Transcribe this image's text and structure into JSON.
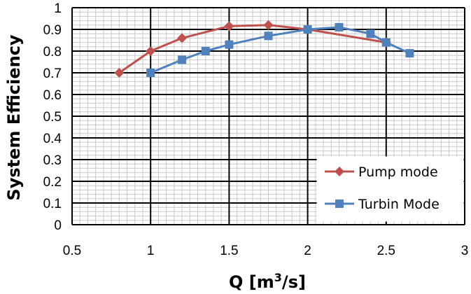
{
  "chart_data": {
    "type": "line",
    "title": "",
    "xlabel": "Q [m³/s]",
    "ylabel": "System Efficiency",
    "xlim": [
      0.5,
      3
    ],
    "ylim": [
      0,
      1
    ],
    "x_ticks": [
      "0.5",
      "1",
      "1.5",
      "2",
      "2.5",
      "3"
    ],
    "y_ticks": [
      "0",
      "0.1",
      "0.2",
      "0.3",
      "0.4",
      "0.5",
      "0.6",
      "0.7",
      "0.8",
      "0.9",
      "1"
    ],
    "grid": true,
    "legend_position": "bottom-right",
    "series": [
      {
        "name": "Pump mode",
        "color": "#c0504d",
        "marker": "diamond",
        "x": [
          0.8,
          1.0,
          1.2,
          1.5,
          1.75,
          2.0,
          2.5
        ],
        "y": [
          0.7,
          0.8,
          0.86,
          0.915,
          0.92,
          0.9,
          0.84
        ]
      },
      {
        "name": "Turbin Mode",
        "color": "#4f81bd",
        "marker": "square",
        "x": [
          1.0,
          1.2,
          1.35,
          1.5,
          1.75,
          2.0,
          2.2,
          2.4,
          2.5,
          2.65
        ],
        "y": [
          0.7,
          0.76,
          0.8,
          0.83,
          0.87,
          0.9,
          0.91,
          0.88,
          0.84,
          0.79
        ]
      }
    ]
  }
}
